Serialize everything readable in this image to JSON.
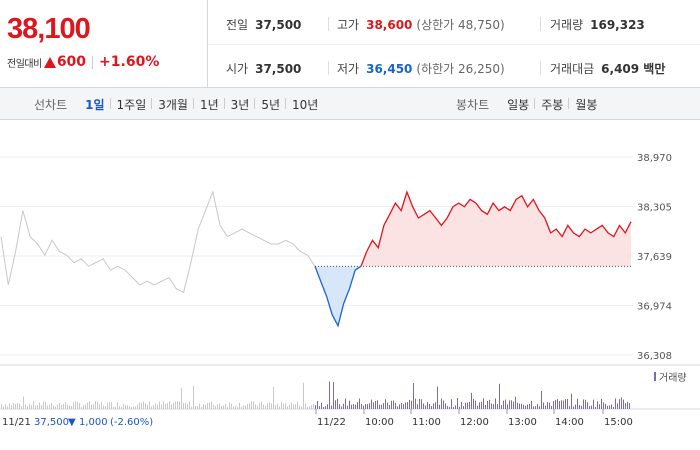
{
  "price": {
    "current": "38,100",
    "change_label": "전일대비",
    "change_amount": "600",
    "change_pct": "+1.60%"
  },
  "stats": {
    "prev_close": {
      "label": "전일",
      "value": "37,500"
    },
    "open": {
      "label": "시가",
      "value": "37,500"
    },
    "high": {
      "label": "고가",
      "value": "38,600",
      "limit": "(상한가 48,750)"
    },
    "low": {
      "label": "저가",
      "value": "36,450",
      "limit": "(하한가 26,250)"
    },
    "volume": {
      "label": "거래량",
      "value": "169,323"
    },
    "amount": {
      "label": "거래대금",
      "value": "6,409 백만"
    }
  },
  "toolbar": {
    "line_title": "선차트",
    "line_periods": [
      "1일",
      "1주일",
      "3개월",
      "1년",
      "3년",
      "5년",
      "10년"
    ],
    "line_active": "1일",
    "candle_title": "봉차트",
    "candle_periods": [
      "일봉",
      "주봉",
      "월봉"
    ]
  },
  "colors": {
    "up": "#e0161d",
    "down": "#1a62d6",
    "prev_day": "#c8c8c8",
    "volume": "#7b6ba8"
  },
  "chart_data": {
    "type": "line",
    "y_ticks": [
      "38,970",
      "38,305",
      "37,639",
      "36,974",
      "36,308"
    ],
    "ylim": [
      36308,
      38970
    ],
    "base_price": 37500,
    "prev_day_info": {
      "date": "11/21",
      "close": "37,500",
      "change": "1,000",
      "change_pct": "(-2.60%)"
    },
    "x_labels": [
      "11/21",
      "11/22",
      "10:00",
      "11:00",
      "12:00",
      "13:00",
      "14:00",
      "15:00"
    ],
    "legend": "거래량",
    "prev_day_series": [
      37900,
      37250,
      37700,
      38250,
      37900,
      37800,
      37650,
      37850,
      37700,
      37650,
      37550,
      37600,
      37500,
      37550,
      37600,
      37450,
      37500,
      37450,
      37350,
      37250,
      37300,
      37250,
      37300,
      37350,
      37200,
      37150,
      37550,
      38000,
      38250,
      38500,
      38050,
      37900,
      37950,
      38000,
      37950,
      37900,
      37850,
      37800,
      37800,
      37850,
      37800,
      37700,
      37650,
      37500
    ],
    "today_series": [
      37500,
      37300,
      37100,
      36850,
      36700,
      37000,
      37200,
      37450,
      37500,
      37700,
      37850,
      37750,
      38050,
      38200,
      38350,
      38250,
      38500,
      38300,
      38150,
      38200,
      38250,
      38150,
      38050,
      38150,
      38300,
      38350,
      38300,
      38400,
      38350,
      38250,
      38200,
      38350,
      38250,
      38300,
      38250,
      38400,
      38450,
      38300,
      38400,
      38250,
      38150,
      37950,
      38000,
      37900,
      38050,
      37950,
      37900,
      38000,
      37950,
      38000,
      38050,
      37950,
      37900,
      38050,
      37950,
      38100
    ]
  }
}
